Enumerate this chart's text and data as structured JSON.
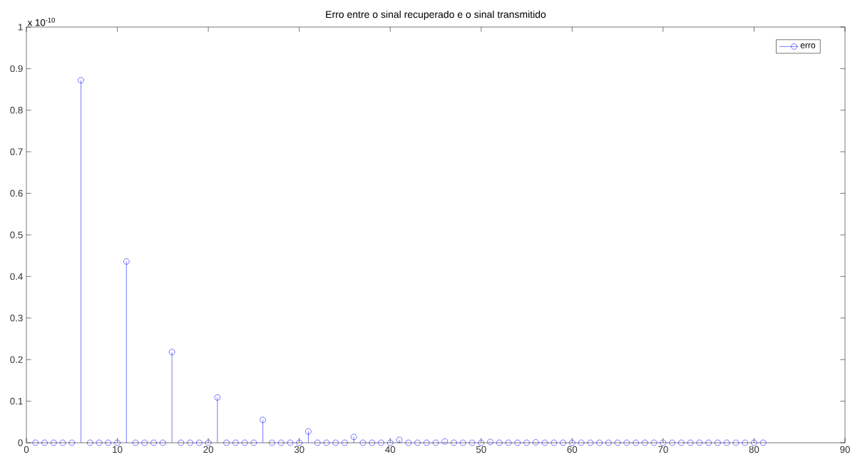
{
  "chart_data": {
    "type": "lollipop",
    "title": "Erro entre o sinal recuperado e o sinal transmitido",
    "annotations": [
      "x 10$^{-10}$"
    ],
    "x": [
      1,
      2,
      3,
      4,
      5,
      6,
      7,
      8,
      9,
      10,
      11,
      12,
      13,
      14,
      15,
      16,
      17,
      18,
      19,
      20,
      21,
      22,
      23,
      24,
      25,
      26,
      27,
      28,
      29,
      30,
      31,
      32,
      33,
      34,
      35,
      36,
      37,
      38,
      39,
      40,
      41,
      42,
      43,
      44,
      45,
      46,
      47,
      48,
      49,
      50,
      51,
      52,
      53,
      54,
      55,
      56,
      57,
      58,
      59,
      60,
      61,
      62,
      63,
      64,
      65,
      66,
      67,
      68,
      69,
      70,
      71,
      72,
      73,
      74,
      75,
      76,
      77,
      78,
      79,
      80,
      81
    ],
    "series": [
      {
        "name": "erro",
        "color": "#0000ff",
        "values": [
          0,
          0,
          0,
          0,
          0,
          0.872,
          0,
          0,
          0,
          0,
          0.436,
          0,
          0,
          0,
          0,
          0.218,
          0,
          0,
          0,
          0,
          0.109,
          0,
          0,
          0,
          0,
          0.055,
          0,
          0,
          0,
          0,
          0.027,
          0,
          0,
          0,
          0,
          0.014,
          0,
          0,
          0,
          0,
          0.007,
          0,
          0,
          0,
          0,
          0.003,
          0,
          0,
          0,
          0,
          0.002,
          0,
          0,
          0,
          0,
          0.001,
          0,
          0,
          0,
          0,
          0,
          0,
          0,
          0,
          0,
          0,
          0,
          0,
          0,
          0,
          0,
          0,
          0,
          0,
          0,
          0,
          0,
          0,
          0,
          0,
          0
        ]
      }
    ],
    "xlim": [
      0,
      90
    ],
    "xticks": [
      0,
      10,
      20,
      30,
      40,
      50,
      60,
      70,
      80,
      90
    ],
    "ylim": [
      0,
      1
    ],
    "yticks": [
      0,
      0.1,
      0.2,
      0.3,
      0.4,
      0.5,
      0.6,
      0.7,
      0.8,
      0.9,
      1
    ],
    "legend": "top right",
    "marker": "circle",
    "line_style": "solid",
    "grid": false
  }
}
